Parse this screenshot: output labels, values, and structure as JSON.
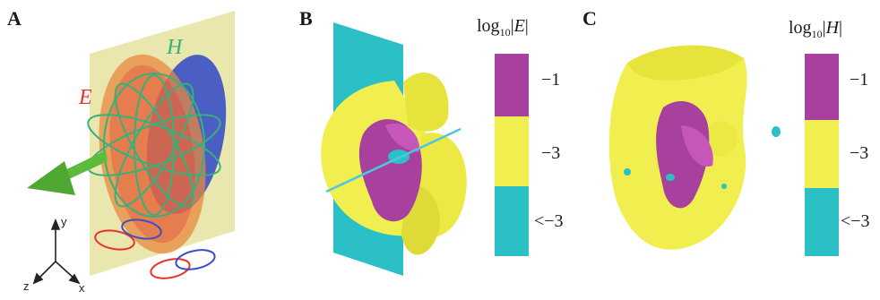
{
  "panels": {
    "a": {
      "letter": "A",
      "e_label": "E",
      "h_label": "H",
      "axes": {
        "y": "y",
        "z": "z",
        "x": "x"
      }
    },
    "b": {
      "letter": "B",
      "colorbar": {
        "title_prefix": "log",
        "title_sub": "10",
        "title_symbol": "E",
        "labels": [
          "−1",
          "−3",
          "<−3"
        ]
      }
    },
    "c": {
      "letter": "C",
      "colorbar": {
        "title_prefix": "log",
        "title_sub": "10",
        "title_symbol": "H",
        "labels": [
          "−1",
          "−3",
          "<−3"
        ]
      }
    }
  },
  "colors": {
    "magenta": "#a8409e",
    "yellow": "#f1ef4f",
    "cyan": "#2bbfc6",
    "plane": "#e5e2a0",
    "e_red": "#e8322c",
    "h_green": "#37b07a",
    "blue_disk": "#3a4fc7",
    "arrow_green": "#5dbb3b"
  }
}
